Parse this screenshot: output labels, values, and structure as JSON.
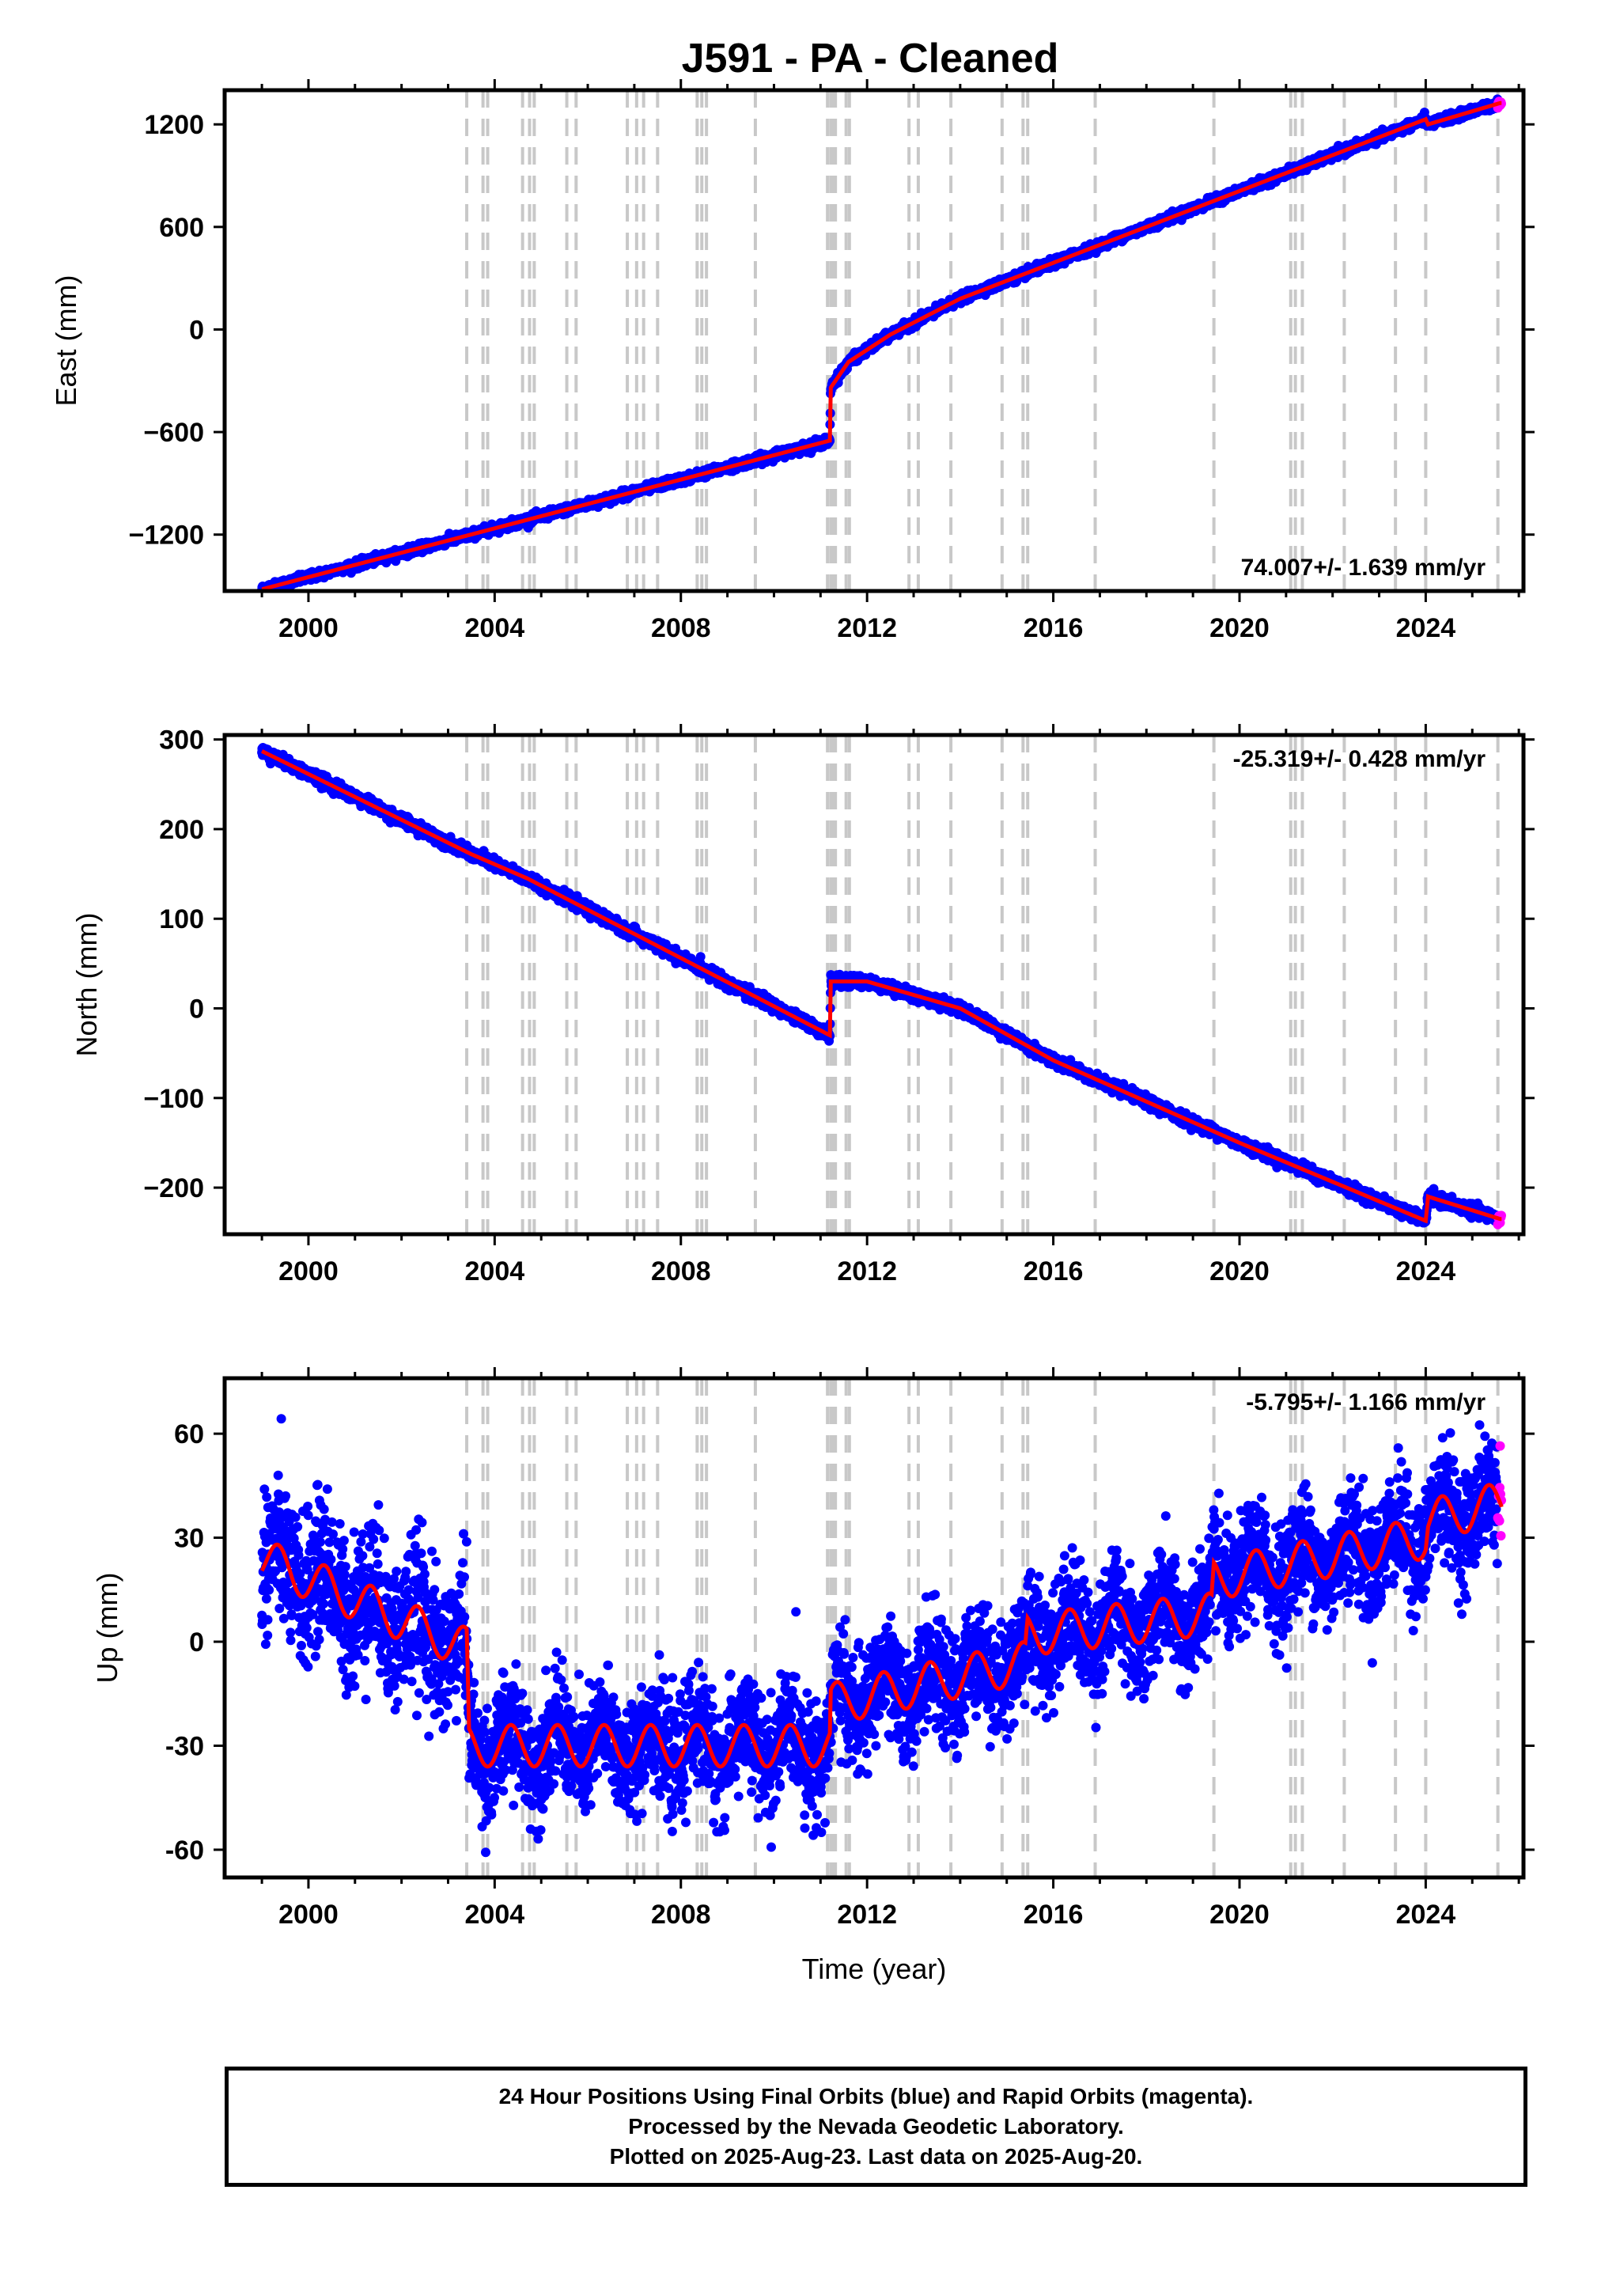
{
  "page": {
    "title": "J591  - PA - Cleaned",
    "footer": {
      "lines": [
        "24 Hour Positions Using Final Orbits (blue) and Rapid Orbits (magenta).",
        "Processed by the Nevada Geodetic Laboratory.",
        "Plotted on 2025-Aug-23. Last data on 2025-Aug-20."
      ]
    },
    "colors": {
      "final_orbits": "#0000ff",
      "rapid_orbits": "#ff00ff",
      "model": "#ff0000",
      "event_lines": "#c8c8c8"
    }
  },
  "chart_data": [
    {
      "type": "scatter",
      "id": "east",
      "ylabel": "East (mm)",
      "xlabel": "",
      "xlim": [
        1998.2,
        2026.1
      ],
      "ylim": [
        -1530,
        1400
      ],
      "yticks": [
        1200,
        600,
        0,
        -600,
        -1200
      ],
      "ytick_labels": [
        "1200",
        "600",
        "0",
        "−600",
        "−1200"
      ],
      "xticks": [
        2000,
        2004,
        2008,
        2012,
        2016,
        2020,
        2024
      ],
      "xtick_labels": [
        "2000",
        "2004",
        "2008",
        "2012",
        "2016",
        "2020",
        "2024"
      ],
      "rate_label": "74.007+/- 1.639 mm/yr",
      "rate_position": "bottom-right",
      "trend_knots": [
        [
          1999.0,
          -1520
        ],
        [
          2011.2,
          -650
        ],
        [
          2011.22,
          -340
        ],
        [
          2011.6,
          -190
        ],
        [
          2012.5,
          -30
        ],
        [
          2014.0,
          180
        ],
        [
          2016.0,
          390
        ],
        [
          2018.0,
          600
        ],
        [
          2020.0,
          810
        ],
        [
          2022.0,
          1020
        ],
        [
          2024.0,
          1230
        ],
        [
          2024.05,
          1200
        ],
        [
          2025.6,
          1325
        ]
      ],
      "noise_sigma": 12,
      "series": [
        {
          "name": "Final Orbits",
          "color": "#0000ff",
          "x_range": [
            1999.0,
            2025.55
          ]
        },
        {
          "name": "Rapid Orbits",
          "color": "#ff00ff",
          "x_range": [
            2025.55,
            2025.63
          ]
        },
        {
          "name": "Model",
          "color": "#ff0000"
        }
      ]
    },
    {
      "type": "scatter",
      "id": "north",
      "ylabel": "North (mm)",
      "xlabel": "",
      "xlim": [
        1998.2,
        2026.1
      ],
      "ylim": [
        -252,
        305
      ],
      "yticks": [
        300,
        200,
        100,
        0,
        -100,
        -200
      ],
      "ytick_labels": [
        "300",
        "200",
        "100",
        "0",
        "−100",
        "−200"
      ],
      "xticks": [
        2000,
        2004,
        2008,
        2012,
        2016,
        2020,
        2024
      ],
      "xtick_labels": [
        "2000",
        "2004",
        "2008",
        "2012",
        "2016",
        "2020",
        "2024"
      ],
      "rate_label": "-25.319+/- 0.428 mm/yr",
      "rate_position": "top-right",
      "trend_knots": [
        [
          1999.0,
          287
        ],
        [
          2003.5,
          172
        ],
        [
          2004.7,
          145
        ],
        [
          2011.2,
          -30
        ],
        [
          2011.22,
          30
        ],
        [
          2012.0,
          30
        ],
        [
          2014.0,
          0
        ],
        [
          2016.0,
          -58
        ],
        [
          2020.0,
          -150
        ],
        [
          2024.0,
          -237
        ],
        [
          2024.05,
          -210
        ],
        [
          2025.6,
          -235
        ]
      ],
      "noise_sigma": 3,
      "series": [
        {
          "name": "Final Orbits",
          "color": "#0000ff",
          "x_range": [
            1999.0,
            2025.55
          ]
        },
        {
          "name": "Rapid Orbits",
          "color": "#ff00ff",
          "x_range": [
            2025.55,
            2025.63
          ]
        },
        {
          "name": "Model",
          "color": "#ff0000"
        }
      ]
    },
    {
      "type": "scatter",
      "id": "up",
      "ylabel": "Up (mm)",
      "xlabel": "Time (year)",
      "xlim": [
        1998.2,
        2026.1
      ],
      "ylim": [
        -68,
        76
      ],
      "yticks": [
        60,
        30,
        0,
        -30,
        -60
      ],
      "ytick_labels": [
        "60",
        "30",
        "0",
        "-30",
        "-60"
      ],
      "xticks": [
        2000,
        2004,
        2008,
        2012,
        2016,
        2020,
        2024
      ],
      "xtick_labels": [
        "2000",
        "2004",
        "2008",
        "2012",
        "2016",
        "2020",
        "2024"
      ],
      "rate_label": "-5.795+/- 1.166 mm/yr",
      "rate_position": "top-right",
      "trend_knots": [
        [
          1999.0,
          24
        ],
        [
          2003.4,
          -2
        ],
        [
          2003.45,
          -30
        ],
        [
          2011.2,
          -30
        ],
        [
          2011.22,
          -18
        ],
        [
          2015.4,
          -6
        ],
        [
          2015.45,
          2
        ],
        [
          2019.4,
          8
        ],
        [
          2019.45,
          18
        ],
        [
          2024.0,
          30
        ],
        [
          2024.05,
          35
        ],
        [
          2025.6,
          40
        ]
      ],
      "seasonal_amplitude": 6,
      "noise_sigma": 8,
      "series": [
        {
          "name": "Final Orbits",
          "color": "#0000ff",
          "x_range": [
            1999.0,
            2025.55
          ]
        },
        {
          "name": "Rapid Orbits",
          "color": "#ff00ff",
          "x_range": [
            2025.55,
            2025.63
          ]
        },
        {
          "name": "Model",
          "color": "#ff0000"
        }
      ]
    }
  ],
  "event_years": [
    2003.4,
    2003.75,
    2003.85,
    2004.6,
    2004.75,
    2004.85,
    2005.55,
    2005.75,
    2006.85,
    2007.05,
    2007.2,
    2007.5,
    2008.35,
    2008.45,
    2008.55,
    2009.6,
    2011.15,
    2011.22,
    2011.28,
    2011.32,
    2011.55,
    2011.62,
    2012.9,
    2013.1,
    2013.8,
    2014.9,
    2015.35,
    2015.45,
    2016.9,
    2019.45,
    2021.1,
    2021.2,
    2021.35,
    2022.25,
    2023.35,
    2024.0,
    2025.55
  ]
}
